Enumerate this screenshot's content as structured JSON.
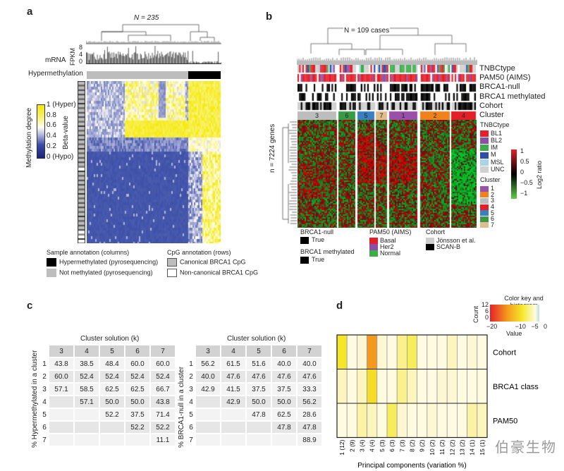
{
  "panel_a": {
    "label": "a",
    "n_label": "N = 235",
    "mrna_label": "mRNA",
    "fpkm_label": "FPKM",
    "fpkm_ticks": [
      "8",
      "4",
      "0"
    ],
    "hypermethylation_label": "Hypermethylation",
    "colorbar_title": "Methylation degree",
    "colorbar_axis": "Beta-value",
    "colorbar_ticks": [
      "1 (Hyper)",
      "0.8",
      "0.6",
      "0.4",
      "0.2",
      "0 (Hypo)"
    ],
    "sample_annotation": {
      "title": "Sample annotation (columns)",
      "items": [
        {
          "label": "Hypermethylated (pyrosequencing)",
          "color": "#000000"
        },
        {
          "label": "Not methylated (pyrosequencing)",
          "color": "#bdbdbd"
        }
      ]
    },
    "cpg_annotation": {
      "title": "CpG annotation (rows)",
      "items": [
        {
          "label": "Canonical BRCA1 CpG",
          "color": "#bdbdbd"
        },
        {
          "label": "Non-canonical BRCA1 CpG",
          "color": "#ffffff"
        }
      ]
    }
  },
  "panel_b": {
    "label": "b",
    "n_label": "N = 109 cases",
    "genes_label": "n = 7224 genes",
    "track_labels": [
      "TNBCtype",
      "PAM50 (AIMS)",
      "BRCA1-null",
      "BRCA1 methylated",
      "Cohort",
      "Cluster"
    ],
    "clusters": [
      {
        "label": "3",
        "color": "#bdbdbd"
      },
      {
        "label": "6",
        "color": "#3a9a44"
      },
      {
        "label": "5",
        "color": "#3a7fc0"
      },
      {
        "label": "7",
        "color": "#e0bd8e"
      },
      {
        "label": "1",
        "color": "#9a4fa8"
      },
      {
        "label": "2",
        "color": "#f0821e"
      },
      {
        "label": "4",
        "color": "#e3202a"
      }
    ],
    "tnbc_legend": {
      "title": "TNBCtype",
      "items": [
        {
          "label": "BL1",
          "color": "#e3202a"
        },
        {
          "label": "BL2",
          "color": "#8b4fa8"
        },
        {
          "label": "IM",
          "color": "#3aae48"
        },
        {
          "label": "M",
          "color": "#2e4ea8"
        },
        {
          "label": "MSL",
          "color": "#a8d4e6"
        },
        {
          "label": "UNC",
          "color": "#d0d0d0"
        }
      ]
    },
    "log2_legend": {
      "title": "Log2 ratio",
      "ticks": [
        "1",
        "0.5",
        "0",
        "−0.5",
        "−1"
      ]
    },
    "cluster_legend": {
      "title": "Cluster",
      "items": [
        {
          "label": "1",
          "color": "#9a4fa8"
        },
        {
          "label": "2",
          "color": "#f0821e"
        },
        {
          "label": "3",
          "color": "#bdbdbd"
        },
        {
          "label": "4",
          "color": "#e3202a"
        },
        {
          "label": "5",
          "color": "#3a7fc0"
        },
        {
          "label": "6",
          "color": "#3a9a44"
        },
        {
          "label": "7",
          "color": "#e0bd8e"
        }
      ]
    },
    "brca1_null_legend": {
      "title": "BRCA1-null",
      "items": [
        {
          "label": "True",
          "color": "#000000"
        }
      ]
    },
    "brca1_meth_legend": {
      "title": "BRCA1 methylated",
      "items": [
        {
          "label": "True",
          "color": "#000000"
        }
      ]
    },
    "pam50_legend": {
      "title": "PAM50 (AIMS)",
      "items": [
        {
          "label": "Basal",
          "color": "#e3202a"
        },
        {
          "label": "Her2",
          "color": "#8b4fa8"
        },
        {
          "label": "Normal",
          "color": "#3aae48"
        }
      ]
    },
    "cohort_legend": {
      "title": "Cohort",
      "items": [
        {
          "label": "Jönsson et al.",
          "color": "#cfcfcf"
        },
        {
          "label": "SCAN-B",
          "color": "#000000"
        }
      ]
    }
  },
  "panel_c": {
    "label": "c",
    "tables": [
      {
        "title": "Cluster solution (k)",
        "ylabel": "% Hypermethylated in a cluster",
        "columns": [
          "3",
          "4",
          "5",
          "6",
          "7"
        ],
        "rows": [
          {
            "label": "1",
            "values": [
              "43.8",
              "38.5",
              "48.4",
              "60.0",
              "60.0"
            ]
          },
          {
            "label": "2",
            "values": [
              "60.0",
              "52.4",
              "52.4",
              "52.4",
              "52.4"
            ]
          },
          {
            "label": "3",
            "values": [
              "57.1",
              "58.5",
              "62.5",
              "62.5",
              "66.7"
            ]
          },
          {
            "label": "4",
            "values": [
              "",
              "57.1",
              "50.0",
              "50.0",
              "43.8"
            ]
          },
          {
            "label": "5",
            "values": [
              "",
              "",
              "52.2",
              "37.5",
              "71.4"
            ]
          },
          {
            "label": "6",
            "values": [
              "",
              "",
              "",
              "52.2",
              "52.2"
            ]
          },
          {
            "label": "7",
            "values": [
              "",
              "",
              "",
              "",
              "11.1"
            ]
          }
        ]
      },
      {
        "title": "Cluster solution (k)",
        "ylabel": "% BRCA1-null in a cluster",
        "columns": [
          "3",
          "4",
          "5",
          "6",
          "7"
        ],
        "rows": [
          {
            "label": "1",
            "values": [
              "56.2",
              "61.5",
              "51.6",
              "40.0",
              "40.0"
            ]
          },
          {
            "label": "2",
            "values": [
              "40.0",
              "47.6",
              "47.6",
              "47.6",
              "47.6"
            ]
          },
          {
            "label": "3",
            "values": [
              "42.9",
              "41.5",
              "37.5",
              "37.5",
              "33.3"
            ]
          },
          {
            "label": "4",
            "values": [
              "",
              "42.9",
              "50.0",
              "50.0",
              "56.2"
            ]
          },
          {
            "label": "5",
            "values": [
              "",
              "",
              "47.8",
              "62.5",
              "28.6"
            ]
          },
          {
            "label": "6",
            "values": [
              "",
              "",
              "",
              "47.8",
              "47.8"
            ]
          },
          {
            "label": "7",
            "values": [
              "",
              "",
              "",
              "",
              "88.9"
            ]
          }
        ]
      }
    ]
  },
  "panel_d": {
    "label": "d",
    "color_key_title": "Color key and histogram",
    "color_key_count_label": "Count",
    "color_key_count_ticks": [
      "12",
      "6",
      "0"
    ],
    "color_key_value_label": "Value",
    "color_key_value_ticks": [
      "−20",
      "−10",
      "−5",
      "0"
    ],
    "xlabel": "Principal components (variation %)",
    "watermark": "伯豪生物"
  },
  "chart_data": {
    "type": "heatmap",
    "xlabel": "Principal components (variation %)",
    "x": [
      "1 (12)",
      "2 (9)",
      "3 (4)",
      "4 (4)",
      "5 (3)",
      "6 (3)",
      "7 (3)",
      "8 (2)",
      "9 (2)",
      "10 (2)",
      "11 (2)",
      "12 (2)",
      "13 (2)",
      "14 (1)",
      "15 (1)"
    ],
    "y": [
      "Cohort",
      "BRCA1 class",
      "PAM50"
    ],
    "value_range": [
      -20,
      0
    ],
    "values": [
      [
        -9,
        -1,
        -2,
        -16,
        -2,
        -1,
        -5,
        -7,
        -1,
        -1,
        -1,
        -3,
        -1,
        -2,
        -1
      ],
      [
        -3,
        -1,
        -3,
        -10,
        -1,
        -1,
        -5,
        -3,
        -1,
        -1,
        -2,
        -2,
        -1,
        -1,
        -1
      ],
      [
        -1,
        -1,
        -4,
        -3,
        -1,
        -7,
        -2,
        -1,
        -1,
        -2,
        -1,
        -1,
        -1,
        -4,
        -3
      ]
    ]
  }
}
